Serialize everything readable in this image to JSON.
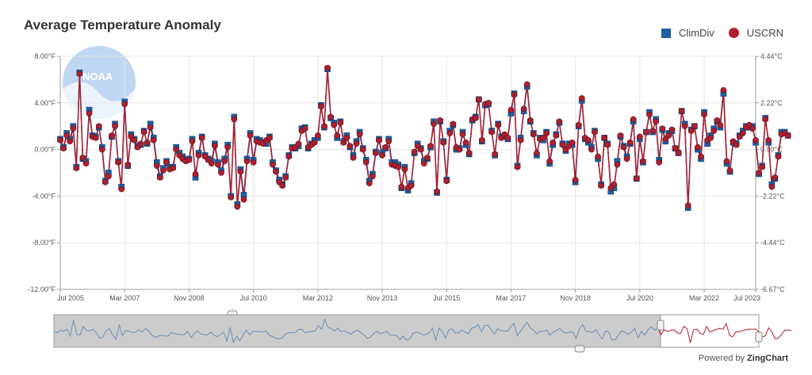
{
  "colors": {
    "climdiv": "#1f5fa3",
    "uscrn": "#b01f2e",
    "grid": "#e6e6e6",
    "axis": "#9aa0a6",
    "preview_line": "#6c8db5"
  },
  "chart_data": {
    "type": "line",
    "title": "Average Temperature Anomaly",
    "legend": {
      "position": "top-right",
      "entries": [
        "ClimDiv",
        "USCRN"
      ]
    },
    "y_left": {
      "range": [
        -12,
        8
      ],
      "ticks": [
        8,
        4,
        0,
        -4,
        -8,
        -12
      ],
      "tick_labels": [
        "8.00°F",
        "4.00°F",
        "0.00°F",
        "-4.00°F",
        "-8.00°F",
        "-12.00°F"
      ]
    },
    "y_right": {
      "range": [
        -6.67,
        4.44
      ],
      "tick_labels": [
        "4.44°C",
        "2.22°C",
        "0.00°C",
        "-2.22°C",
        "-4.44°C",
        "-6.67°C"
      ]
    },
    "x_axis": {
      "start": "Jul 2005",
      "end": "Jul 2023",
      "n_months": 217,
      "tick_labels": [
        "Jul 2005",
        "Mar 2007",
        "Nov 2008",
        "Jul 2010",
        "Mar 2012",
        "Nov 2013",
        "Jul 2015",
        "Mar 2017",
        "Nov 2018",
        "Jul 2020",
        "Mar 2022",
        "Jul 2023"
      ],
      "tick_index": [
        0,
        20,
        40,
        60,
        80,
        100,
        120,
        140,
        160,
        180,
        200,
        216
      ]
    },
    "series": [
      {
        "name": "ClimDiv",
        "marker": "square",
        "values": [
          0.9,
          0.2,
          1.4,
          0.9,
          2.0,
          -1.5,
          6.6,
          -0.8,
          -1.0,
          3.4,
          1.2,
          1.1,
          1.9,
          0.2,
          -2.7,
          -2.0,
          1.1,
          2.2,
          -1.0,
          -3.2,
          4.1,
          -1.4,
          1.3,
          0.9,
          0.3,
          0.4,
          1.6,
          0.5,
          2.2,
          1.0,
          -1.1,
          -2.3,
          -1.6,
          -1.0,
          -1.5,
          -1.5,
          0.2,
          -0.3,
          -0.6,
          -0.9,
          -0.8,
          0.9,
          -2.4,
          -0.3,
          1.1,
          -0.5,
          -0.8,
          -1.0,
          0.5,
          -1.1,
          -1.8,
          -0.8,
          0.4,
          -4.0,
          2.8,
          -4.7,
          -1.7,
          -3.9,
          -0.8,
          1.4,
          -0.9,
          0.9,
          0.8,
          0.6,
          0.5,
          1.1,
          -1.1,
          -1.8,
          -2.6,
          -3.0,
          -2.3,
          -0.5,
          0.2,
          0.1,
          0.3,
          1.8,
          1.9,
          0.1,
          0.5,
          0.8,
          1.0,
          3.8,
          1.9,
          6.9,
          2.7,
          2.3,
          1.0,
          2.4,
          0.7,
          1.2,
          0.2,
          -0.5,
          0.7,
          1.5,
          0.1,
          -0.9,
          -2.7,
          -2.1,
          -0.2,
          0.9,
          -0.3,
          0.1,
          0.9,
          -1.1,
          -1.1,
          -1.3,
          -3.3,
          -1.5,
          -3.5,
          -2.9,
          -0.3,
          0.5,
          0.1,
          -1.0,
          -0.8,
          0.2,
          2.4,
          -3.7,
          2.4,
          0.7,
          -2.6,
          1.6,
          2.1,
          0.0,
          0.1,
          1.5,
          0.4,
          -0.4,
          2.5,
          2.8,
          4.3,
          0.7,
          3.8,
          3.9,
          1.6,
          -0.5,
          2.2,
          1.1,
          1.1,
          0.9,
          3.1,
          4.8,
          -1.4,
          1.0,
          3.3,
          5.4,
          2.4,
          1.4,
          -0.5,
          1.0,
          0.8,
          1.5,
          -1.2,
          0.4,
          1.3,
          2.3,
          0.5,
          -0.1,
          0.5,
          0.4,
          -2.8,
          2.0,
          4.2,
          0.9,
          0.6,
          0.2,
          1.6,
          -0.8,
          -3.0,
          1.0,
          0.5,
          -3.6,
          -3.3,
          -1.0,
          1.1,
          0.3,
          -0.6,
          0.5,
          2.4,
          -2.5,
          0.9,
          -1.1,
          1.5,
          3.2,
          1.5,
          2.6,
          -0.9,
          1.7,
          0.7,
          1.4,
          1.6,
          0.1,
          -0.3,
          3.3,
          2.2,
          -5.0,
          1.7,
          2.0,
          0.0,
          -0.8,
          3.2,
          0.5,
          1.2,
          1.8,
          2.4,
          1.9,
          4.8,
          -1.2,
          -1.9,
          0.6,
          0.5,
          1.2,
          1.6,
          2.0,
          1.9,
          2.0,
          0.6,
          -2.1,
          -1.4,
          2.7,
          0.6,
          -3.0,
          -2.5,
          -0.5,
          1.5,
          1.5,
          1.2
        ]
      },
      {
        "name": "USCRN",
        "marker": "circle",
        "values": [
          0.8,
          0.1,
          1.2,
          0.7,
          1.8,
          -1.6,
          6.5,
          -0.7,
          -1.2,
          3.1,
          1.1,
          1.0,
          2.0,
          0.0,
          -2.8,
          -2.3,
          1.2,
          2.0,
          -1.1,
          -3.4,
          3.9,
          -1.3,
          1.1,
          0.8,
          0.2,
          0.5,
          1.5,
          0.6,
          1.9,
          0.8,
          -1.4,
          -2.4,
          -1.8,
          -1.1,
          -1.7,
          -1.6,
          0.0,
          -0.5,
          -0.8,
          -1.0,
          -0.9,
          0.7,
          -2.1,
          -0.5,
          1.0,
          -0.6,
          -0.9,
          -1.2,
          0.3,
          -1.3,
          -2.0,
          -1.0,
          0.2,
          -4.1,
          2.6,
          -4.9,
          -1.9,
          -4.3,
          -1.0,
          1.2,
          -1.1,
          0.7,
          0.6,
          0.5,
          0.8,
          1.0,
          -1.3,
          -1.9,
          -2.8,
          -3.1,
          -2.4,
          -0.6,
          0.1,
          0.2,
          0.5,
          1.6,
          1.8,
          0.2,
          0.4,
          0.6,
          1.2,
          3.7,
          2.0,
          7.0,
          2.8,
          2.1,
          1.2,
          2.3,
          0.6,
          1.0,
          0.3,
          -0.7,
          0.5,
          1.3,
          0.0,
          -1.1,
          -2.9,
          -2.3,
          -0.3,
          0.8,
          -0.5,
          0.2,
          0.7,
          -1.3,
          -1.4,
          -1.5,
          -3.2,
          -1.7,
          -3.3,
          -3.1,
          -0.2,
          0.3,
          0.0,
          -1.2,
          -0.7,
          0.3,
          2.2,
          -3.6,
          2.5,
          0.6,
          -2.7,
          1.4,
          2.2,
          0.2,
          0.0,
          1.3,
          0.6,
          -0.3,
          2.6,
          2.7,
          4.3,
          0.8,
          3.9,
          4.0,
          1.5,
          -0.4,
          2.1,
          1.0,
          1.3,
          1.0,
          3.4,
          4.7,
          -1.5,
          0.8,
          3.5,
          5.6,
          2.5,
          1.3,
          -0.3,
          0.9,
          1.0,
          1.4,
          -1.0,
          0.6,
          1.2,
          2.4,
          0.4,
          0.0,
          0.3,
          0.6,
          -2.6,
          2.1,
          4.4,
          1.0,
          0.8,
          0.0,
          1.5,
          -0.6,
          -3.1,
          1.0,
          0.4,
          -3.3,
          -3.0,
          -1.3,
          1.2,
          0.2,
          -0.8,
          0.6,
          2.6,
          -2.5,
          1.1,
          -1.0,
          1.5,
          3.0,
          1.6,
          2.4,
          -1.1,
          1.8,
          0.9,
          1.2,
          1.7,
          0.1,
          -0.3,
          3.3,
          2.0,
          -4.8,
          1.6,
          2.0,
          0.2,
          -0.6,
          3.0,
          0.8,
          1.0,
          1.6,
          2.5,
          2.1,
          5.1,
          -1.0,
          -1.8,
          0.7,
          0.4,
          1.1,
          1.4,
          1.9,
          2.1,
          1.8,
          0.8,
          -2.0,
          -1.5,
          2.6,
          0.8,
          -3.2,
          -2.4,
          -0.6,
          1.3,
          1.4,
          1.2
        ]
      }
    ]
  },
  "footer": {
    "powered_prefix": "Powered by ",
    "powered_brand": "ZingChart"
  },
  "logo": {
    "text": "NOAA"
  }
}
